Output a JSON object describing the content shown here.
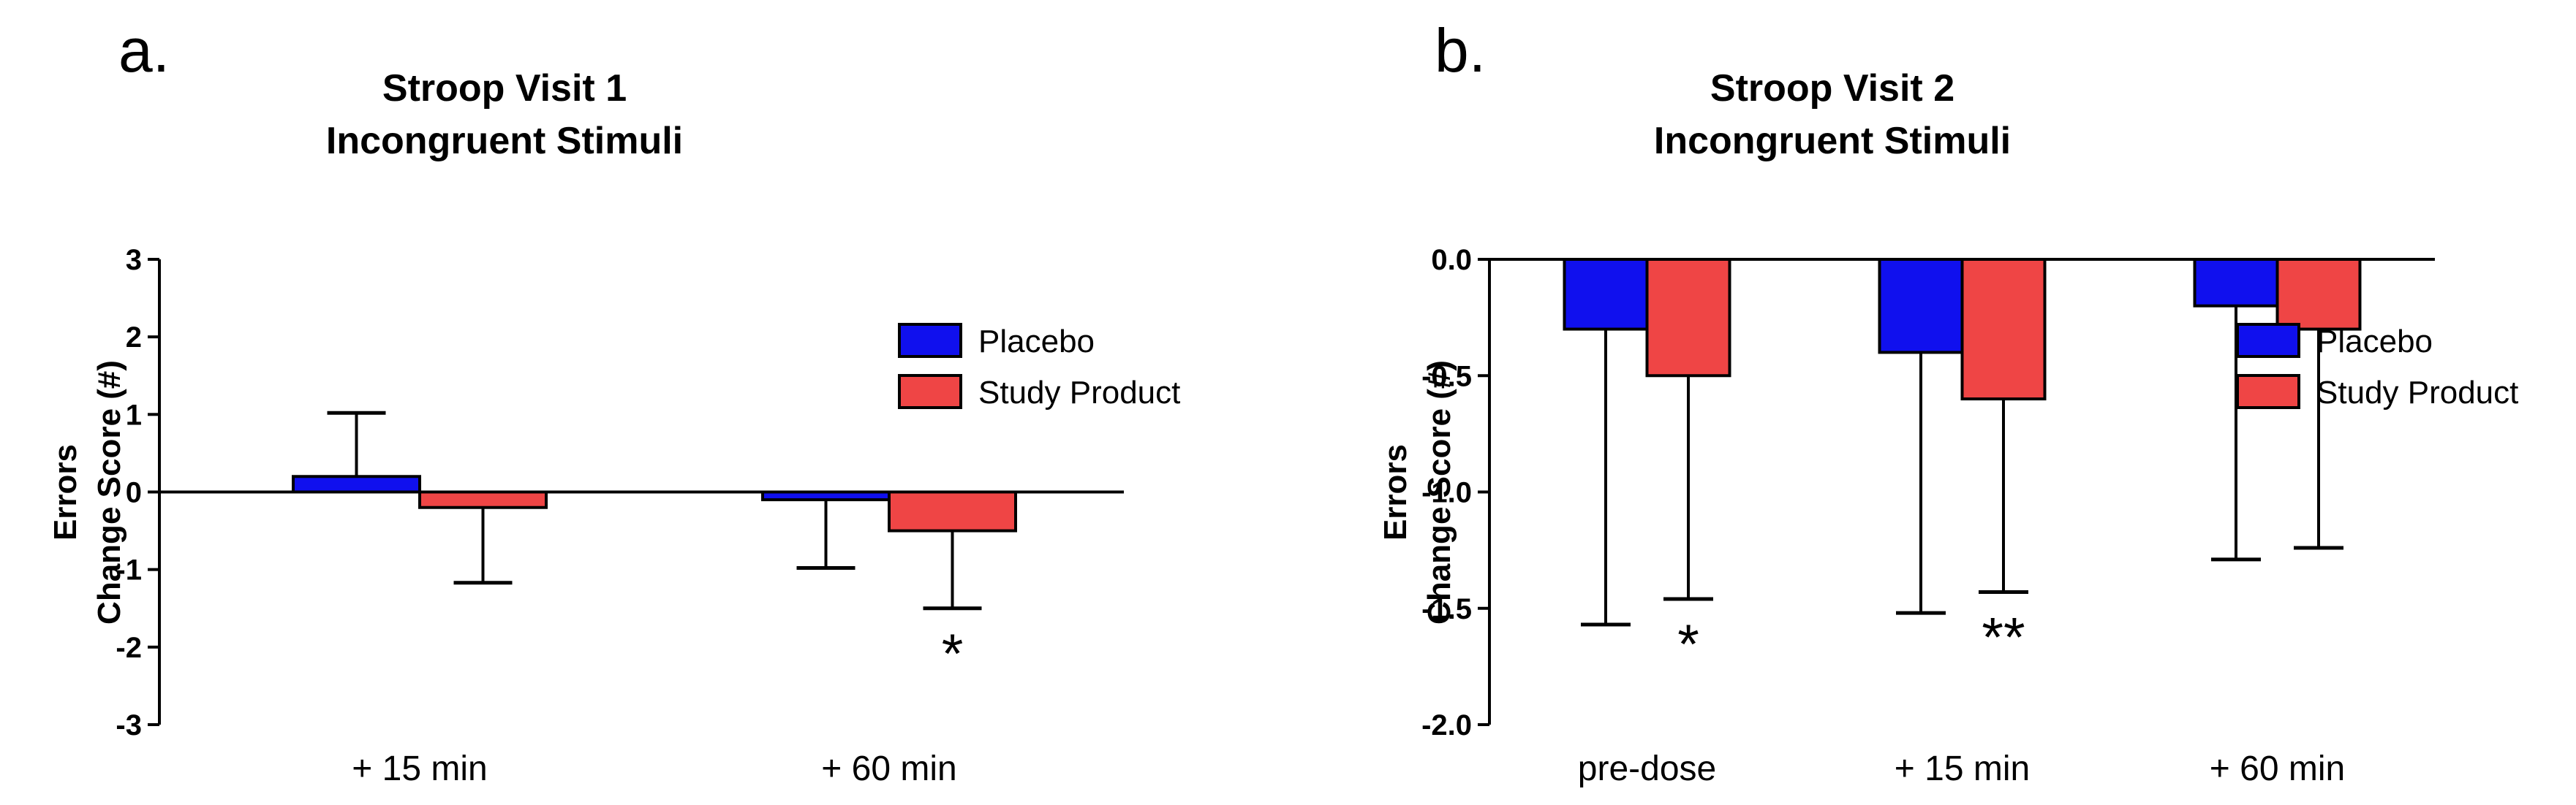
{
  "chart_data": [
    {
      "type": "bar",
      "panel": "a.",
      "title_lines": [
        "Stroop Visit 1",
        "Incongruent Stimuli"
      ],
      "ylabel_lines": [
        "Errors",
        "Change Score (#)"
      ],
      "ylim": [
        -3,
        3
      ],
      "yticks": [
        -3,
        -2,
        -1,
        0,
        1,
        2,
        3
      ],
      "ytick_labels": [
        "-3",
        "-2",
        "-1",
        "0",
        "1",
        "2",
        "3"
      ],
      "categories": [
        "+ 15 min",
        "+ 60 min"
      ],
      "series": [
        {
          "name": "Placebo",
          "color": "#1010ee",
          "values": [
            0.2,
            -0.1
          ],
          "error": [
            0.82,
            0.88
          ]
        },
        {
          "name": "Study Product",
          "color": "#ef4545",
          "values": [
            -0.2,
            -0.5
          ],
          "error": [
            0.97,
            1.0
          ]
        }
      ],
      "annotations": [
        {
          "series": 1,
          "category": 1,
          "text": "*"
        }
      ]
    },
    {
      "type": "bar",
      "panel": "b.",
      "title_lines": [
        "Stroop Visit 2",
        "Incongruent Stimuli"
      ],
      "ylabel_lines": [
        "Errors",
        "Change Score (#)"
      ],
      "ylim": [
        -2.0,
        0.0
      ],
      "yticks": [
        -2.0,
        -1.5,
        -1.0,
        -0.5,
        0.0
      ],
      "ytick_labels": [
        "-2.0",
        "-1.5",
        "-1.0",
        "-0.5",
        "0.0"
      ],
      "categories": [
        "pre-dose",
        "+ 15 min",
        "+ 60 min"
      ],
      "series": [
        {
          "name": "Placebo",
          "color": "#1010ee",
          "values": [
            -0.3,
            -0.4,
            -0.2
          ],
          "error": [
            1.27,
            1.12,
            1.09
          ]
        },
        {
          "name": "Study Product",
          "color": "#ef4545",
          "values": [
            -0.5,
            -0.6,
            -0.3
          ],
          "error": [
            0.96,
            0.83,
            0.94
          ]
        }
      ],
      "annotations": [
        {
          "series": 1,
          "category": 0,
          "text": "*"
        },
        {
          "series": 1,
          "category": 1,
          "text": "**"
        }
      ]
    }
  ]
}
